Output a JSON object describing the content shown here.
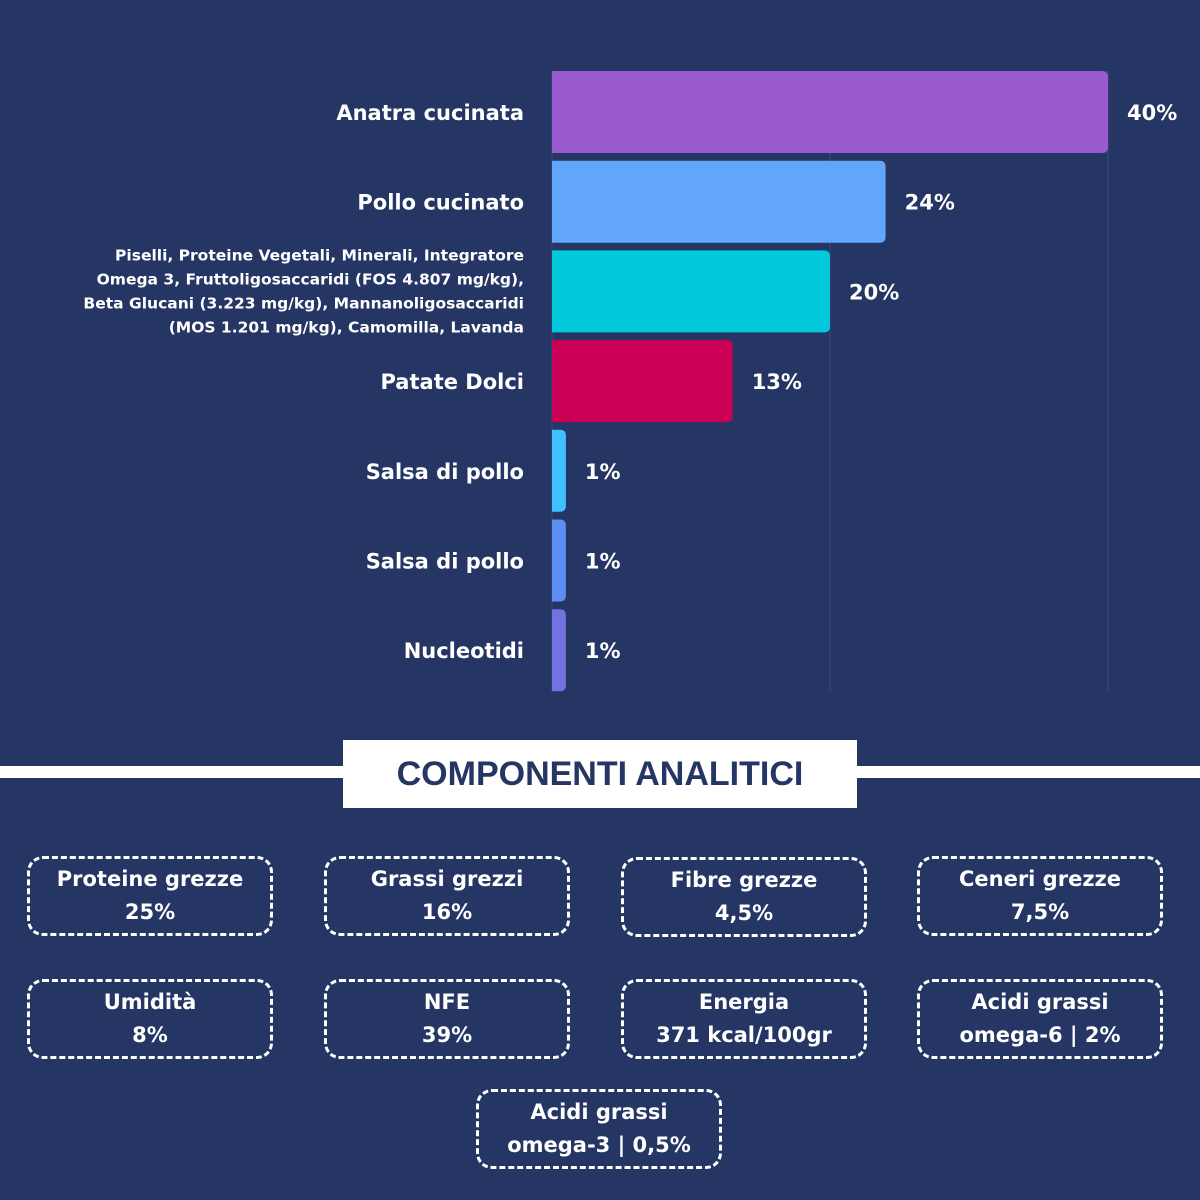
{
  "chart_data": {
    "type": "bar",
    "orientation": "horizontal",
    "categories": [
      [
        "Anatra cucinata"
      ],
      [
        "Pollo cucinato"
      ],
      [
        "Piselli, Proteine Vegetali, Minerali, Integratore",
        "Omega 3, Fruttoligosaccaridi (FOS 4.807 mg/kg),",
        "Beta Glucani (3.223 mg/kg), Mannanoligosaccaridi",
        "(MOS 1.201 mg/kg), Camomilla, Lavanda"
      ],
      [
        "Patate Dolci"
      ],
      [
        "Salsa di pollo"
      ],
      [
        "Salsa di pollo"
      ],
      [
        "Nucleotidi"
      ]
    ],
    "values": [
      40,
      24,
      20,
      13,
      1,
      1,
      1
    ],
    "value_labels": [
      "40%",
      "24%",
      "20%",
      "13%",
      "1%",
      "1%",
      "1%"
    ],
    "colors": [
      "#9b59cf",
      "#62a6fb",
      "#00c9db",
      "#cc0055",
      "#42bfff",
      "#5a8ef0",
      "#7272e0"
    ],
    "xlim": [
      0,
      40
    ],
    "grid": true
  },
  "section": {
    "title": "COMPONENTI ANALITICI"
  },
  "components": [
    {
      "name": "Proteine grezze",
      "value": "25%"
    },
    {
      "name": "Grassi grezzi",
      "value": "16%"
    },
    {
      "name": "Fibre grezze",
      "value": "4,5%"
    },
    {
      "name": "Ceneri grezze",
      "value": "7,5%"
    },
    {
      "name": "Umidità",
      "value": "8%"
    },
    {
      "name": "NFE",
      "value": "39%"
    },
    {
      "name": "Energia",
      "value": "371 kcal/100gr"
    },
    {
      "name": "Acidi grassi",
      "value": "omega-6 | 2%"
    },
    {
      "name": "Acidi grassi",
      "value": "omega-3 | 0,5%"
    }
  ]
}
